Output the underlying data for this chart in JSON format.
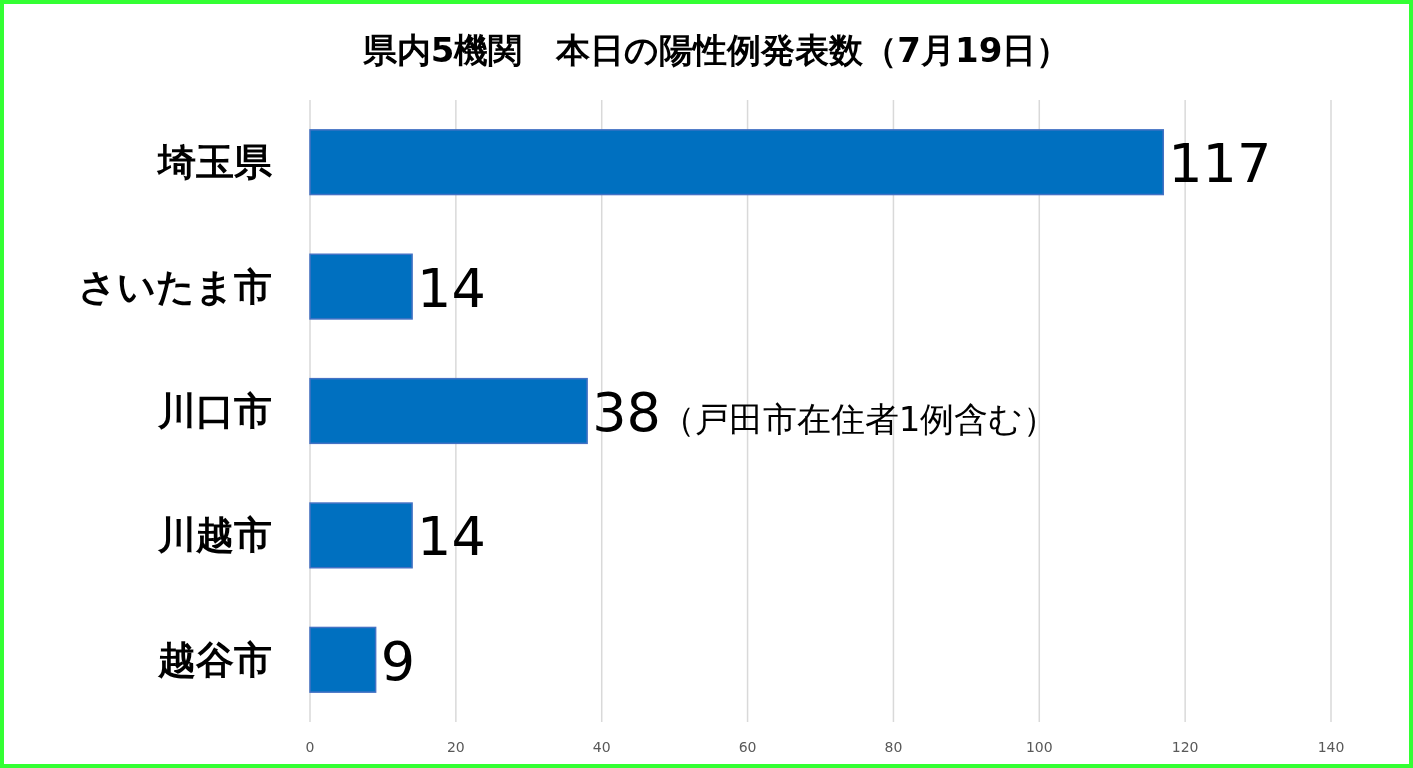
{
  "chart_data": {
    "type": "bar",
    "orientation": "horizontal",
    "title": "県内5機関　本日の陽性例発表数（7月19日）",
    "categories": [
      "埼玉県",
      "さいたま市",
      "川口市",
      "川越市",
      "越谷市"
    ],
    "values": [
      117,
      14,
      38,
      14,
      9
    ],
    "value_labels": [
      "117",
      "14",
      "38（戸田市在住者1例含む）",
      "14",
      "9"
    ],
    "color": "#0070c0",
    "xlim": [
      0,
      140
    ],
    "xticks": [
      0,
      20,
      40,
      60,
      80,
      100,
      120,
      140
    ],
    "grid": "x"
  }
}
